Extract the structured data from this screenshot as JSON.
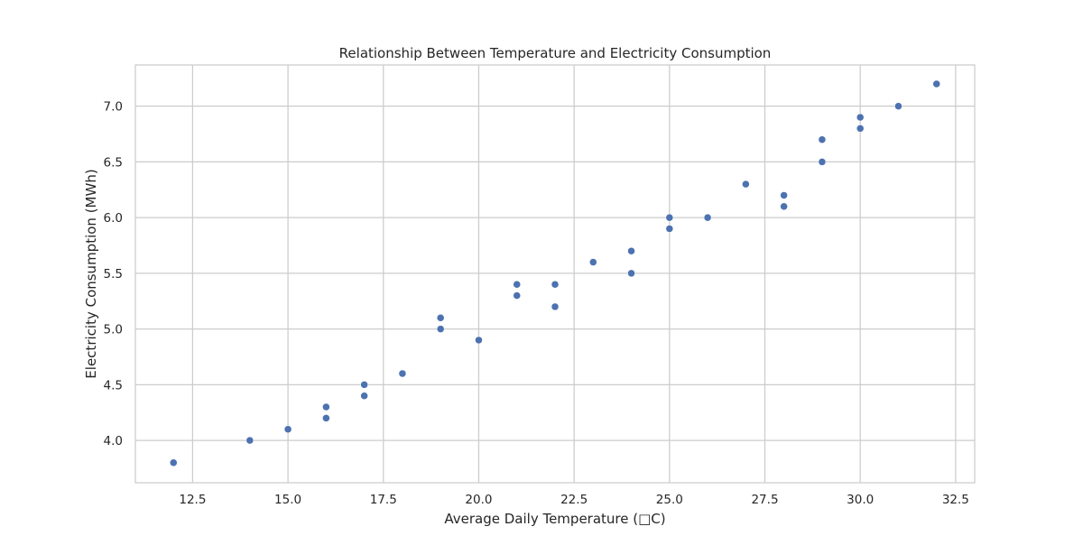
{
  "chart_data": {
    "type": "scatter",
    "title": "Relationship Between Temperature and Electricity Consumption",
    "xlabel": "Average Daily Temperature (□C)",
    "ylabel": "Electricity Consumption (MWh)",
    "xlim": [
      11.0,
      33.0
    ],
    "ylim": [
      3.62,
      7.37
    ],
    "xticks": [
      12.5,
      15.0,
      17.5,
      20.0,
      22.5,
      25.0,
      27.5,
      30.0,
      32.5
    ],
    "yticks": [
      4.0,
      4.5,
      5.0,
      5.5,
      6.0,
      6.5,
      7.0
    ],
    "grid": true,
    "marker_color": "#4c72b0",
    "series": [
      {
        "x": [
          12,
          14,
          15,
          16,
          16,
          17,
          17,
          18,
          19,
          19,
          20,
          21,
          21,
          22,
          22,
          23,
          24,
          24,
          25,
          25,
          26,
          27,
          28,
          28,
          29,
          29,
          30,
          30,
          31,
          32
        ],
        "y": [
          3.8,
          4.0,
          4.1,
          4.2,
          4.3,
          4.4,
          4.5,
          4.6,
          5.0,
          5.1,
          4.9,
          5.3,
          5.4,
          5.2,
          5.4,
          5.6,
          5.5,
          5.7,
          5.9,
          6.0,
          6.0,
          6.3,
          6.1,
          6.2,
          6.5,
          6.7,
          6.8,
          6.9,
          7.0,
          7.2
        ]
      }
    ]
  }
}
